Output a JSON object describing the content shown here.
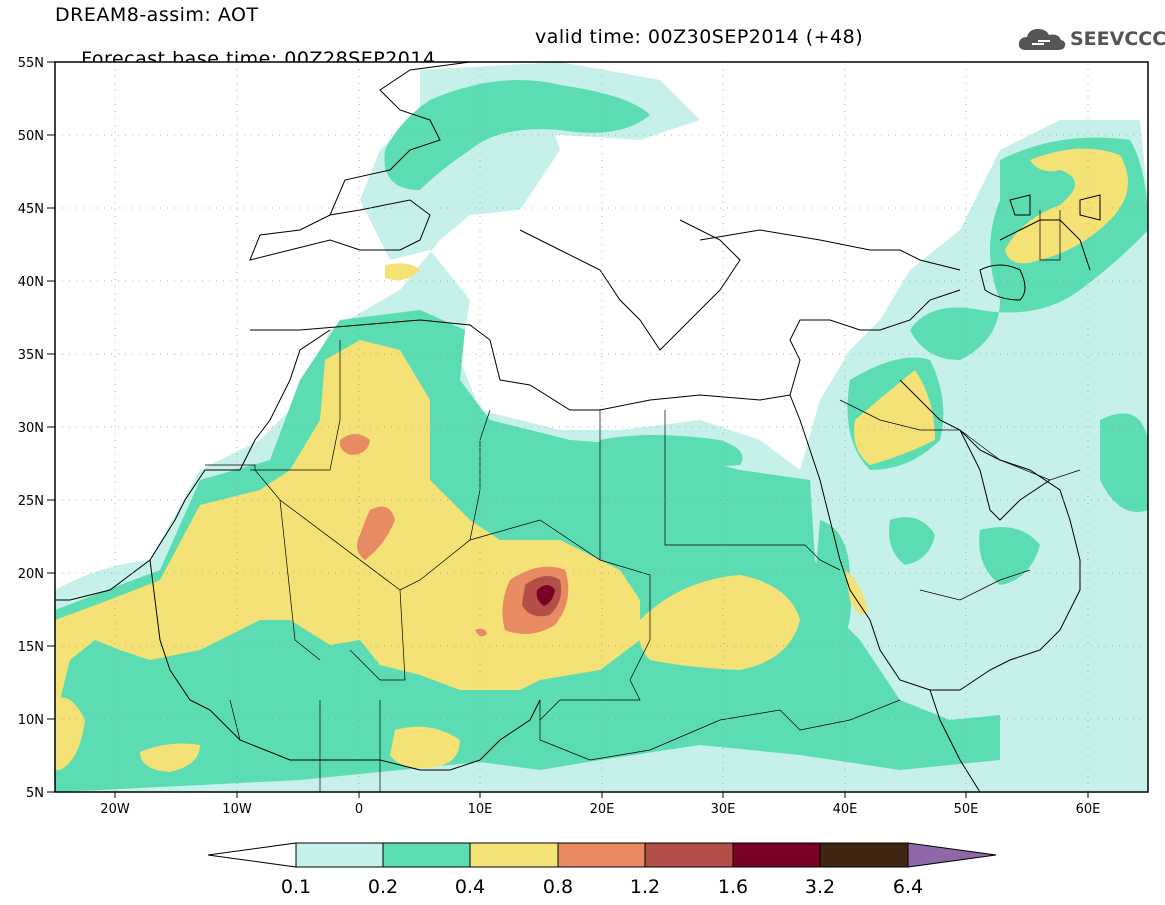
{
  "header": {
    "line1": "DREAM8-assim: AOT",
    "line2_base": "Forecast base time: 00Z28SEP2014",
    "line2_valid": "valid time: 00Z30SEP2014 (+48)"
  },
  "logo": {
    "text": "SEEVCCC",
    "icon": "cloud-icon"
  },
  "axes": {
    "lat_ticks": [
      "55N",
      "50N",
      "45N",
      "40N",
      "35N",
      "30N",
      "25N",
      "20N",
      "15N",
      "10N",
      "5N"
    ],
    "lon_ticks": [
      "20W",
      "10W",
      "0",
      "10E",
      "20E",
      "30E",
      "40E",
      "50E",
      "60E"
    ]
  },
  "colorbar": {
    "labels": [
      "0.1",
      "0.2",
      "0.4",
      "0.8",
      "1.2",
      "1.6",
      "3.2",
      "6.4"
    ],
    "colors": [
      "#ffffff",
      "#c6f0ea",
      "#5cdcb2",
      "#f5e276",
      "#e88a62",
      "#b24f48",
      "#7a0026",
      "#3e2612",
      "#8e68a8"
    ]
  }
}
